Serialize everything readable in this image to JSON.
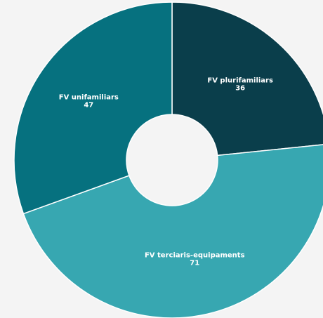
{
  "chart_data": {
    "type": "donut",
    "categories": [
      "FV plurifamiliars",
      "FV terciaris-equipaments",
      "FV unifamiliars"
    ],
    "values": [
      36,
      71,
      47
    ],
    "colors": [
      "#0a3e4b",
      "#37a7b1",
      "#06717f"
    ]
  }
}
